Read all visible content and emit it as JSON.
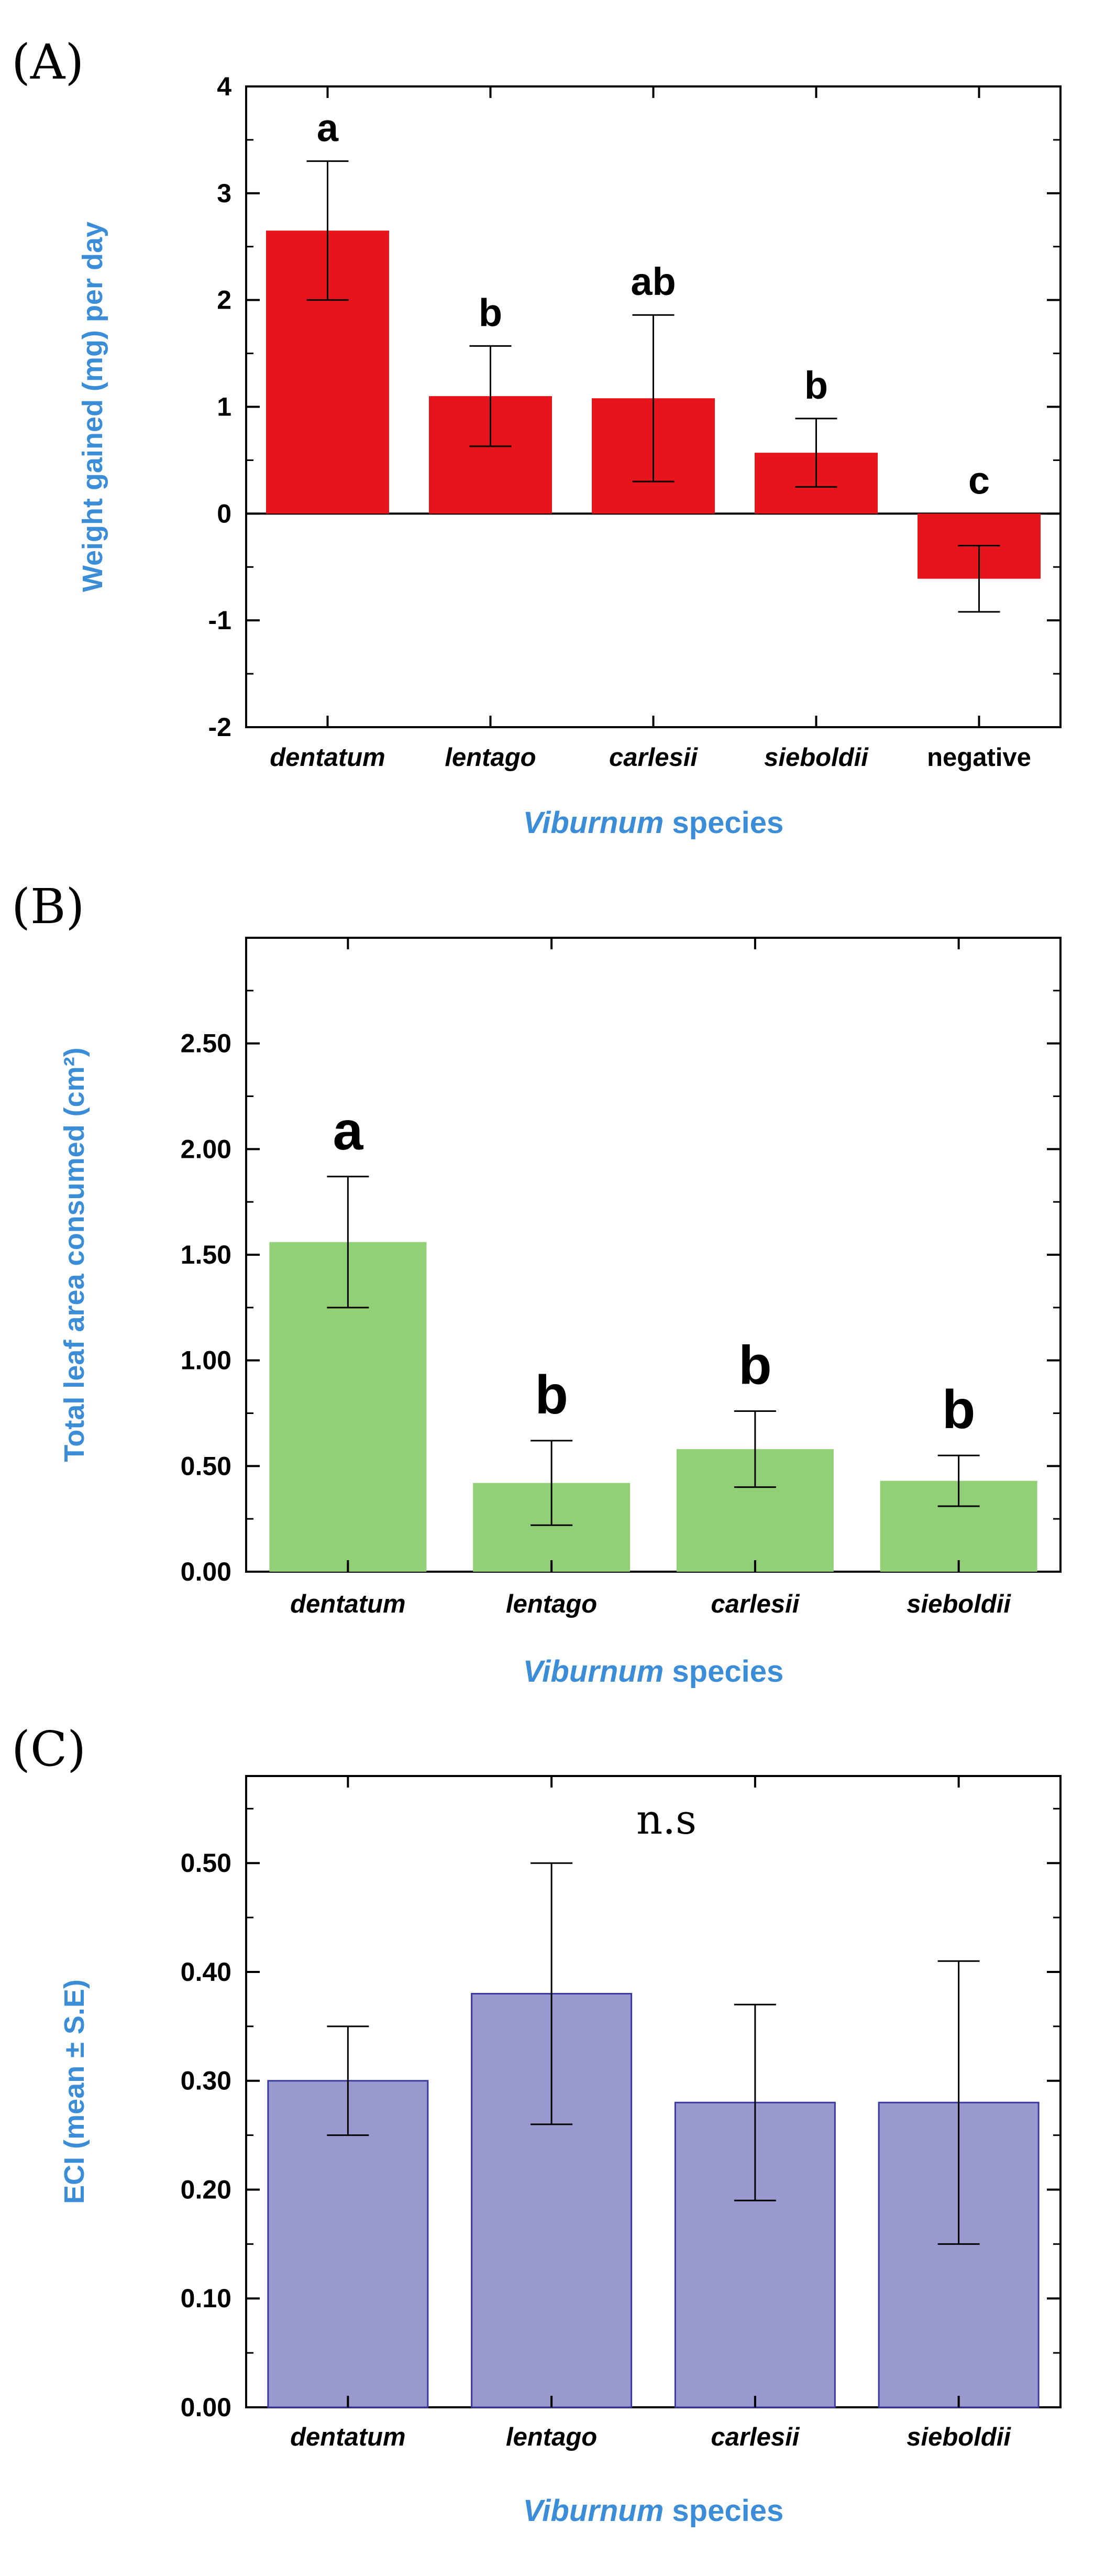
{
  "chart_data": [
    {
      "type": "bar",
      "panel": "(A)",
      "categories": [
        "dentatum",
        "lentago",
        "carlesii",
        "sieboldii",
        "negative"
      ],
      "italic_categories": [
        true,
        true,
        true,
        true,
        false
      ],
      "values": [
        2.65,
        1.1,
        1.08,
        0.57,
        -0.61
      ],
      "errors": [
        0.65,
        0.47,
        0.78,
        0.32,
        0.31
      ],
      "significance": [
        "a",
        "b",
        "ab",
        "b",
        "c"
      ],
      "ylabel": "Weight gained (mg) per day",
      "xlabel_italic": "Viburnum",
      "xlabel_rest": " species",
      "ylim": [
        -2,
        4
      ],
      "yticks": [
        -2,
        -1,
        0,
        1,
        2,
        3,
        4
      ],
      "ytick_labels": [
        "-2",
        "-1",
        "0",
        "1",
        "2",
        "3",
        "4"
      ],
      "bar_color": "#e8141c",
      "zero_line": true
    },
    {
      "type": "bar",
      "panel": "(B)",
      "categories": [
        "dentatum",
        "lentago",
        "carlesii",
        "sieboldii"
      ],
      "italic_categories": [
        true,
        true,
        true,
        true
      ],
      "values": [
        1.56,
        0.42,
        0.58,
        0.43
      ],
      "errors": [
        0.31,
        0.2,
        0.18,
        0.12
      ],
      "significance": [
        "a",
        "b",
        "b",
        "b"
      ],
      "ylabel": "Total leaf area consumed (cm²)",
      "xlabel_italic": "Viburnum",
      "xlabel_rest": " species",
      "ylim": [
        0,
        3.0
      ],
      "yticks": [
        0,
        0.5,
        1.0,
        1.5,
        2.0,
        2.5
      ],
      "ytick_labels": [
        "0.00",
        "0.50",
        "1.00",
        "1.50",
        "2.00",
        "2.50"
      ],
      "bar_color": "#92d077",
      "zero_line": false
    },
    {
      "type": "bar",
      "panel": "(C)",
      "categories": [
        "dentatum",
        "lentago",
        "carlesii",
        "sieboldii"
      ],
      "italic_categories": [
        true,
        true,
        true,
        true
      ],
      "values": [
        0.3,
        0.38,
        0.28,
        0.28
      ],
      "errors": [
        0.05,
        0.12,
        0.09,
        0.13
      ],
      "annotation": "n.s",
      "ylabel": "ECI (mean ± S.E)",
      "xlabel_italic": "Viburnum",
      "xlabel_rest": " species",
      "ylim": [
        0,
        0.58
      ],
      "yticks": [
        0,
        0.1,
        0.2,
        0.3,
        0.4,
        0.5
      ],
      "ytick_labels": [
        "0.00",
        "0.10",
        "0.20",
        "0.30",
        "0.40",
        "0.50"
      ],
      "bar_color": "#9999cf",
      "bar_stroke": "#3a3aa0",
      "zero_line": false
    }
  ]
}
